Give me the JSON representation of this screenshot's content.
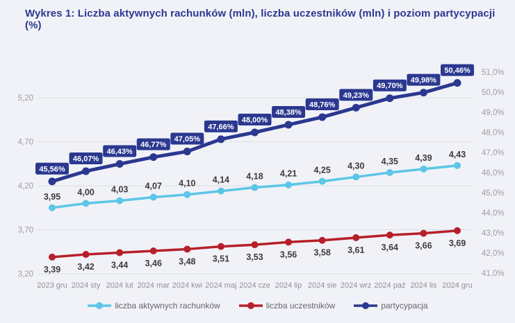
{
  "title": "Wykres 1: Liczba aktywnych rachunków (mln), liczba uczestników (mln) i poziom partycypacji (%)",
  "colors": {
    "background": "#F1F2F7",
    "title": "#2B3890",
    "grid": "#DDDDE2",
    "axis_tick_text": "#9C9CA4",
    "x_tick_text": "#8F8F97",
    "value_label_text": "#3C3C3C",
    "legend_text": "#63636B",
    "accounts_line": "#5BC6E8",
    "participants_line": "#B6202A",
    "participation_line": "#2B3890",
    "participation_box_text": "#FFFFFF"
  },
  "chart_data": {
    "type": "line",
    "title": "Wykres 1: Liczba aktywnych rachunków (mln), liczba uczestników (mln) i poziom partycypacji (%)",
    "categories": [
      "2023 gru",
      "2024 sty",
      "2024 lut",
      "2024 mar",
      "2024 kwi",
      "2024 maj",
      "2024 cze",
      "2024 lip",
      "2024 sie",
      "2024 wrz",
      "2024 paź",
      "2024 lis",
      "2024 gru"
    ],
    "series": [
      {
        "name": "liczba aktywnych rachunków",
        "axis": "left",
        "color": "#5BC6E8",
        "label_style": "above",
        "values": [
          3.95,
          4.0,
          4.03,
          4.07,
          4.1,
          4.14,
          4.18,
          4.21,
          4.25,
          4.3,
          4.35,
          4.39,
          4.43
        ],
        "labels": [
          "3,95",
          "4,00",
          "4,03",
          "4,07",
          "4,10",
          "4,14",
          "4,18",
          "4,21",
          "4,25",
          "4,30",
          "4,35",
          "4,39",
          "4,43"
        ]
      },
      {
        "name": "liczba uczestników",
        "axis": "left",
        "color": "#B6202A",
        "label_style": "below",
        "values": [
          3.39,
          3.42,
          3.44,
          3.46,
          3.48,
          3.51,
          3.53,
          3.56,
          3.58,
          3.61,
          3.64,
          3.66,
          3.69
        ],
        "labels": [
          "3,39",
          "3,42",
          "3,44",
          "3,46",
          "3,48",
          "3,51",
          "3,53",
          "3,56",
          "3,58",
          "3,61",
          "3,64",
          "3,66",
          "3,69"
        ]
      },
      {
        "name": "partycypacja",
        "axis": "right",
        "color": "#2B3890",
        "label_style": "box",
        "values": [
          45.56,
          46.07,
          46.43,
          46.77,
          47.05,
          47.66,
          48.0,
          48.38,
          48.76,
          49.23,
          49.7,
          49.98,
          50.46
        ],
        "labels": [
          "45,56%",
          "46,07%",
          "46,43%",
          "46,77%",
          "47,05%",
          "47,66%",
          "48,00%",
          "48,38%",
          "48,76%",
          "49,23%",
          "49,70%",
          "49,98%",
          "50,46%"
        ]
      }
    ],
    "left_axis": {
      "labels": [
        "5,20",
        "4,70",
        "4,20",
        "3,70",
        "3,20"
      ],
      "values": [
        5.2,
        4.7,
        4.2,
        3.7,
        3.2
      ],
      "min": 3.2,
      "max": 5.2
    },
    "right_axis": {
      "labels": [
        "51,0%",
        "50,0%",
        "49,0%",
        "48,0%",
        "47,0%",
        "46,0%",
        "45,0%",
        "44,0%",
        "43,0%",
        "42,0%",
        "41,0%"
      ],
      "values": [
        51.0,
        50.0,
        49.0,
        48.0,
        47.0,
        46.0,
        45.0,
        44.0,
        43.0,
        42.0,
        41.0
      ],
      "min": 41.0,
      "max": 51.0
    },
    "grid": true,
    "legend_position": "bottom",
    "legend": [
      "liczba aktywnych rachunków",
      "liczba uczestników",
      "partycypacja"
    ]
  }
}
